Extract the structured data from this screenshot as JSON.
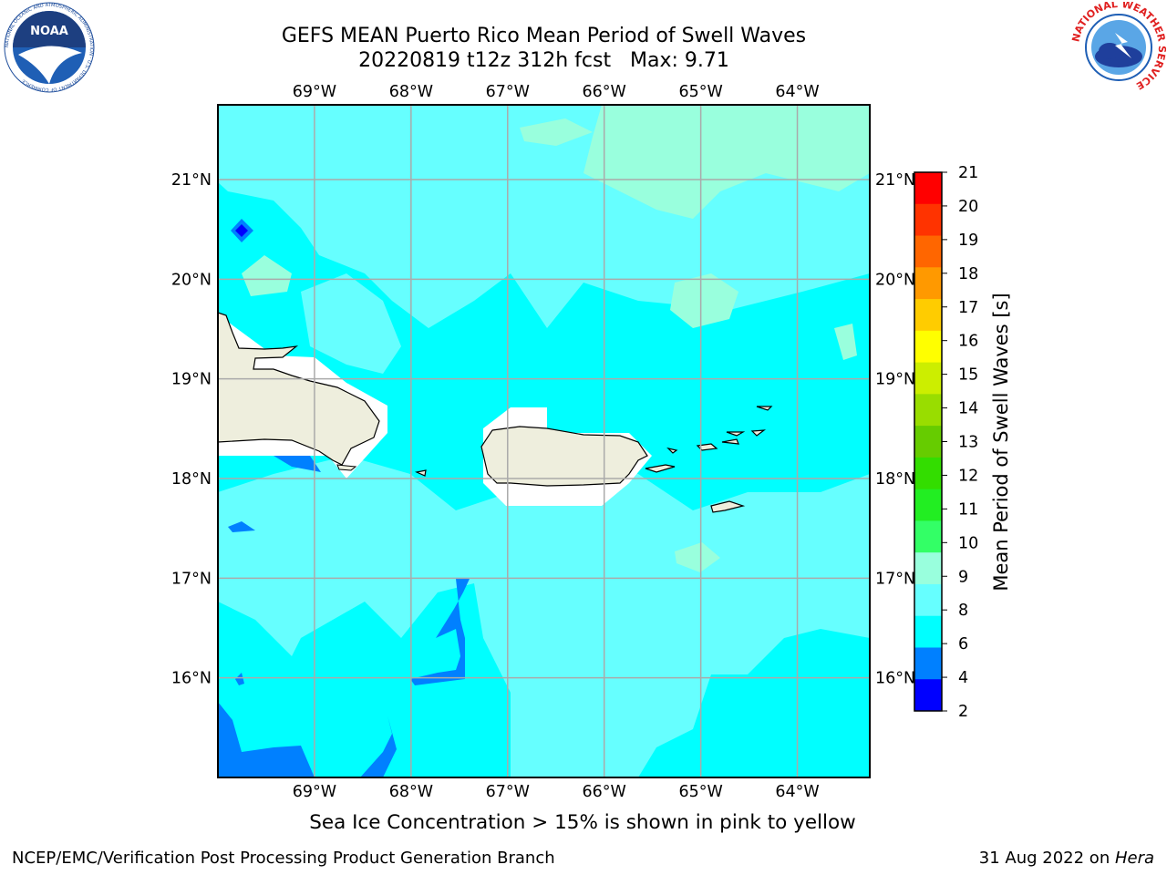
{
  "header": {
    "title_line1": "GEFS MEAN Puerto Rico Mean Period of Swell Waves",
    "title_line2": "20220819 t12z 312h fcst   Max: 9.71"
  },
  "logos": {
    "noaa_text": "NOAA",
    "noaa_ring": "NATIONAL OCEANIC AND ATMOSPHERIC ADMINISTRATION · U.S. DEPARTMENT OF COMMERCE",
    "nws_ring": "NATIONAL WEATHER SERVICE"
  },
  "map": {
    "lon_labels": [
      "69°W",
      "68°W",
      "67°W",
      "66°W",
      "65°W",
      "64°W"
    ],
    "lon_values": [
      -69,
      -68,
      -67,
      -66,
      -65,
      -64
    ],
    "lat_labels": [
      "21°N",
      "20°N",
      "19°N",
      "18°N",
      "17°N",
      "16°N"
    ],
    "lat_values": [
      21,
      20,
      19,
      18,
      17,
      16
    ],
    "lon_range": [
      -70.0,
      -63.25
    ],
    "lat_range": [
      15.0,
      21.75
    ],
    "grid": true,
    "base_color": "#00ffff",
    "lighter_color": "#66ffff",
    "light_green_color": "#99ffdd",
    "blue_color": "#0080ff",
    "dark_blue_color": "#0000ff",
    "land_color": "#eeeedd"
  },
  "colorbar": {
    "label": "Mean Period of Swell Waves [s]",
    "ticks": [
      "21",
      "20",
      "19",
      "18",
      "17",
      "16",
      "15",
      "14",
      "13",
      "12",
      "11",
      "10",
      "9",
      "8",
      "6",
      "4",
      "2"
    ],
    "colors": [
      "#ff0000",
      "#ff3300",
      "#ff6600",
      "#ff9900",
      "#ffcc00",
      "#ffff00",
      "#ccee00",
      "#99dd00",
      "#66cc00",
      "#33dd00",
      "#22ee22",
      "#33ff66",
      "#99ffdd",
      "#66ffff",
      "#00ffff",
      "#0080ff",
      "#0000ff"
    ]
  },
  "footer": {
    "note": "Sea Ice Concentration > 15% is shown in pink to yellow",
    "credit": "NCEP/EMC/Verification Post Processing Product Generation Branch",
    "date": "31 Aug 2022 on ",
    "machine": "Hera"
  }
}
